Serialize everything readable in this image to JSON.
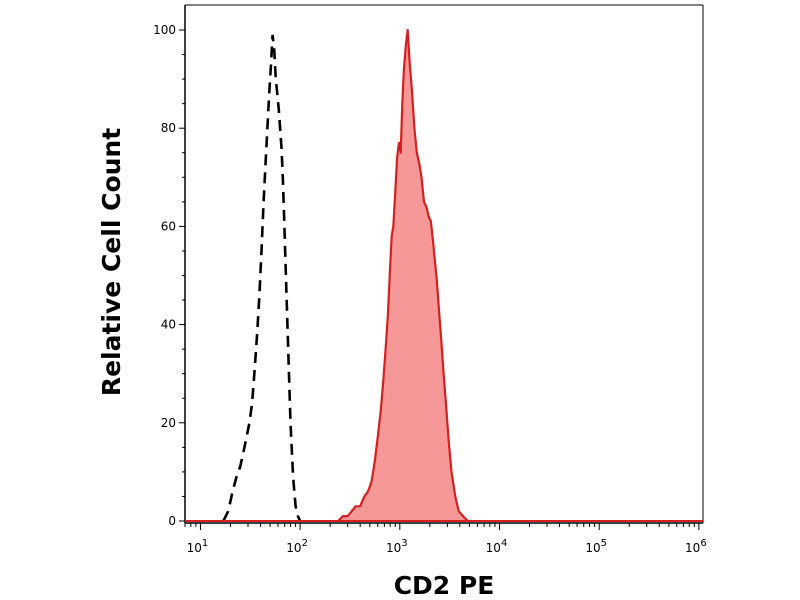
{
  "chart_data": {
    "type": "area",
    "title": "",
    "xlabel": "CD2 PE",
    "ylabel": "Relative Cell Count",
    "x_scale": "log",
    "xlim": [
      7,
      1100000
    ],
    "ylim": [
      0,
      100
    ],
    "grid": false,
    "legend": "none",
    "x_ticks": [
      {
        "value": 10,
        "base": "10",
        "exp": "1"
      },
      {
        "value": 100,
        "base": "10",
        "exp": "2"
      },
      {
        "value": 1000,
        "base": "10",
        "exp": "3"
      },
      {
        "value": 10000,
        "base": "10",
        "exp": "4"
      },
      {
        "value": 100000,
        "base": "10",
        "exp": "5"
      },
      {
        "value": 1000000,
        "base": "10",
        "exp": "6"
      }
    ],
    "y_ticks": [
      {
        "value": 0,
        "label": "0"
      },
      {
        "value": 20,
        "label": "20"
      },
      {
        "value": 40,
        "label": "40"
      },
      {
        "value": 60,
        "label": "60"
      },
      {
        "value": 80,
        "label": "80"
      },
      {
        "value": 100,
        "label": "100"
      }
    ],
    "series": [
      {
        "style": "dashed",
        "color": "#000000",
        "x": [
          17,
          19,
          21,
          23,
          25,
          27,
          29,
          31,
          33,
          35,
          37,
          39,
          41,
          43,
          45,
          47,
          49,
          51,
          53,
          55,
          57,
          59,
          61,
          63,
          65,
          67,
          69,
          72,
          76,
          80,
          85,
          90,
          95,
          100
        ],
        "y": [
          0,
          2,
          6,
          9,
          11,
          14,
          17,
          20,
          24,
          31,
          38,
          46,
          55,
          65,
          73,
          80,
          87,
          93,
          99,
          96,
          90,
          87,
          84,
          80,
          76,
          70,
          62,
          50,
          35,
          20,
          9,
          3,
          1,
          0
        ]
      },
      {
        "style": "filled",
        "color": "#d62020",
        "fill": "#f79898",
        "x": [
          240,
          270,
          300,
          330,
          360,
          400,
          440,
          480,
          520,
          560,
          600,
          640,
          680,
          720,
          760,
          800,
          830,
          860,
          900,
          940,
          980,
          1020,
          1060,
          1100,
          1150,
          1200,
          1260,
          1320,
          1400,
          1480,
          1560,
          1650,
          1750,
          1850,
          1950,
          2050,
          2150,
          2250,
          2350,
          2450,
          2600,
          2750,
          2900,
          3100,
          3300,
          3600,
          3900,
          4300,
          4800,
          5300
        ],
        "y": [
          0,
          1,
          1,
          2,
          3,
          3,
          5,
          6,
          8,
          12,
          17,
          22,
          28,
          35,
          42,
          52,
          58,
          60,
          67,
          74,
          77,
          75,
          85,
          92,
          97,
          100,
          93,
          88,
          80,
          75,
          73,
          70,
          65,
          64,
          62,
          61,
          57,
          53,
          49,
          44,
          37,
          30,
          24,
          16,
          10,
          5,
          2,
          1,
          0,
          0
        ]
      }
    ]
  }
}
